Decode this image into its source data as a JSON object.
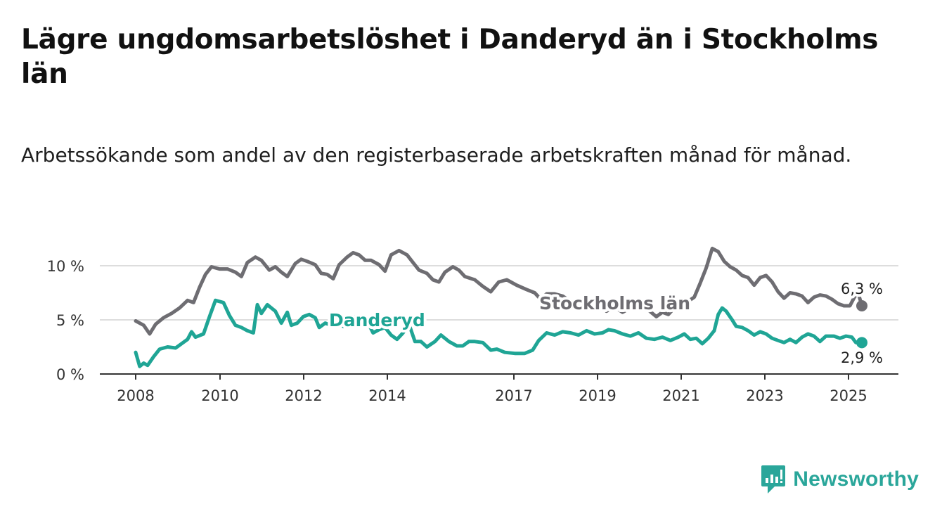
{
  "title": "Lägre ungdomsarbetslöshet i Danderyd än i Stockholms län",
  "subtitle": "Arbetssökande som andel av den registerbaserade arbetskraften månad för månad.",
  "logo_text": "Newsworthy",
  "colors": {
    "stockholm": "#6e6d72",
    "danderyd": "#1fa595",
    "grid": "#dddddd",
    "axis": "#333333"
  },
  "chart_data": {
    "type": "line",
    "title": "Lägre ungdomsarbetslöshet i Danderyd än i Stockholms län",
    "subtitle": "Arbetssökande som andel av den registerbaserade arbetskraften månad för månad.",
    "xlabel": "",
    "ylabel": "",
    "xlim": [
      2008.0,
      2026.2
    ],
    "ylim": [
      0,
      12
    ],
    "x_ticks": [
      "2008",
      "2010",
      "2012",
      "2014",
      "2017",
      "2019",
      "2021",
      "2023",
      "2025"
    ],
    "y_ticks": [
      "0 %",
      "5 %",
      "10 %"
    ],
    "grid": true,
    "series": [
      {
        "name": "Stockholms län",
        "end_label": "6,3 %",
        "points": [
          [
            2008.0,
            4.9
          ],
          [
            2008.2,
            4.5
          ],
          [
            2008.35,
            3.7
          ],
          [
            2008.5,
            4.6
          ],
          [
            2008.7,
            5.2
          ],
          [
            2008.9,
            5.6
          ],
          [
            2009.1,
            6.1
          ],
          [
            2009.3,
            6.8
          ],
          [
            2009.45,
            6.6
          ],
          [
            2009.6,
            8.0
          ],
          [
            2009.75,
            9.2
          ],
          [
            2009.9,
            9.9
          ],
          [
            2010.1,
            9.7
          ],
          [
            2010.3,
            9.7
          ],
          [
            2010.5,
            9.4
          ],
          [
            2010.65,
            9.0
          ],
          [
            2010.8,
            10.3
          ],
          [
            2011.0,
            10.8
          ],
          [
            2011.15,
            10.5
          ],
          [
            2011.35,
            9.6
          ],
          [
            2011.5,
            9.9
          ],
          [
            2011.65,
            9.4
          ],
          [
            2011.8,
            9.0
          ],
          [
            2012.0,
            10.2
          ],
          [
            2012.15,
            10.6
          ],
          [
            2012.3,
            10.4
          ],
          [
            2012.5,
            10.1
          ],
          [
            2012.65,
            9.3
          ],
          [
            2012.8,
            9.2
          ],
          [
            2012.95,
            8.8
          ],
          [
            2013.1,
            10.1
          ],
          [
            2013.3,
            10.8
          ],
          [
            2013.45,
            11.2
          ],
          [
            2013.6,
            11.0
          ],
          [
            2013.75,
            10.5
          ],
          [
            2013.9,
            10.5
          ],
          [
            2014.1,
            10.1
          ],
          [
            2014.25,
            9.5
          ],
          [
            2014.4,
            11.0
          ],
          [
            2014.6,
            11.4
          ],
          [
            2014.8,
            11.0
          ],
          [
            2014.95,
            10.3
          ],
          [
            2015.1,
            9.6
          ],
          [
            2015.3,
            9.3
          ],
          [
            2015.45,
            8.7
          ],
          [
            2015.6,
            8.5
          ],
          [
            2015.75,
            9.4
          ],
          [
            2015.95,
            9.9
          ],
          [
            2016.1,
            9.6
          ],
          [
            2016.25,
            9.0
          ],
          [
            2016.5,
            8.7
          ],
          [
            2016.7,
            8.1
          ],
          [
            2016.9,
            7.6
          ],
          [
            2017.1,
            8.5
          ],
          [
            2017.3,
            8.7
          ],
          [
            2017.55,
            8.2
          ],
          [
            2017.8,
            7.8
          ],
          [
            2018.0,
            7.5
          ],
          [
            2018.15,
            6.9
          ],
          [
            2018.3,
            7.4
          ],
          [
            2018.5,
            7.4
          ],
          [
            2018.7,
            7.2
          ],
          [
            2018.9,
            6.7
          ],
          [
            2019.1,
            6.4
          ],
          [
            2019.35,
            6.1
          ],
          [
            2019.6,
            6.7
          ],
          [
            2019.8,
            5.8
          ],
          [
            2020.0,
            6.2
          ],
          [
            2020.2,
            5.7
          ],
          [
            2020.4,
            6.1
          ],
          [
            2020.55,
            6.4
          ],
          [
            2020.7,
            6.0
          ],
          [
            2020.85,
            5.9
          ],
          [
            2021.05,
            5.3
          ],
          [
            2021.2,
            5.7
          ],
          [
            2021.35,
            5.5
          ],
          [
            2021.5,
            6.1
          ],
          [
            2021.65,
            6.6
          ],
          [
            2021.8,
            6.6
          ],
          [
            2022.0,
            7.1
          ],
          [
            2022.15,
            8.4
          ],
          [
            2022.3,
            9.8
          ],
          [
            2022.45,
            11.6
          ],
          [
            2022.6,
            11.3
          ],
          [
            2022.75,
            10.4
          ],
          [
            2022.9,
            9.9
          ],
          [
            2023.05,
            9.6
          ],
          [
            2023.2,
            9.1
          ],
          [
            2023.35,
            8.9
          ],
          [
            2023.5,
            8.2
          ],
          [
            2023.65,
            8.9
          ],
          [
            2023.8,
            9.1
          ],
          [
            2023.95,
            8.5
          ],
          [
            2024.1,
            7.6
          ],
          [
            2024.25,
            7.0
          ],
          [
            2024.4,
            7.5
          ],
          [
            2024.55,
            7.4
          ],
          [
            2024.7,
            7.2
          ],
          [
            2024.85,
            6.6
          ],
          [
            2025.0,
            7.1
          ],
          [
            2025.15,
            7.3
          ],
          [
            2025.3,
            7.2
          ],
          [
            2025.45,
            6.9
          ],
          [
            2025.6,
            6.5
          ],
          [
            2025.75,
            6.3
          ],
          [
            2025.9,
            6.3
          ],
          [
            2026.0,
            7.0
          ],
          [
            2026.1,
            7.6
          ],
          [
            2026.2,
            6.3
          ]
        ]
      },
      {
        "name": "Danderyd",
        "end_label": "2,9 %",
        "points": [
          [
            2008.0,
            2.0
          ],
          [
            2008.1,
            0.7
          ],
          [
            2008.2,
            1.0
          ],
          [
            2008.3,
            0.8
          ],
          [
            2008.45,
            1.6
          ],
          [
            2008.6,
            2.3
          ],
          [
            2008.8,
            2.5
          ],
          [
            2009.0,
            2.4
          ],
          [
            2009.15,
            2.8
          ],
          [
            2009.3,
            3.2
          ],
          [
            2009.4,
            3.9
          ],
          [
            2009.5,
            3.4
          ],
          [
            2009.7,
            3.7
          ],
          [
            2009.85,
            5.3
          ],
          [
            2010.0,
            6.8
          ],
          [
            2010.2,
            6.6
          ],
          [
            2010.35,
            5.4
          ],
          [
            2010.5,
            4.5
          ],
          [
            2010.65,
            4.3
          ],
          [
            2010.8,
            4.0
          ],
          [
            2010.95,
            3.8
          ],
          [
            2011.05,
            6.4
          ],
          [
            2011.15,
            5.6
          ],
          [
            2011.3,
            6.4
          ],
          [
            2011.5,
            5.8
          ],
          [
            2011.65,
            4.7
          ],
          [
            2011.8,
            5.7
          ],
          [
            2011.9,
            4.5
          ],
          [
            2012.05,
            4.7
          ],
          [
            2012.2,
            5.3
          ],
          [
            2012.35,
            5.5
          ],
          [
            2012.5,
            5.2
          ],
          [
            2012.6,
            4.3
          ],
          [
            2012.75,
            4.7
          ],
          [
            2012.9,
            4.5
          ],
          [
            2013.05,
            4.9
          ],
          [
            2013.2,
            4.4
          ],
          [
            2013.35,
            5.0
          ],
          [
            2013.5,
            5.3
          ],
          [
            2013.65,
            4.4
          ],
          [
            2013.8,
            4.9
          ],
          [
            2013.95,
            3.8
          ],
          [
            2014.1,
            4.1
          ],
          [
            2014.25,
            4.3
          ],
          [
            2014.4,
            3.6
          ],
          [
            2014.55,
            3.2
          ],
          [
            2014.7,
            3.8
          ],
          [
            2014.85,
            4.6
          ],
          [
            2015.0,
            3.0
          ],
          [
            2015.15,
            3.0
          ],
          [
            2015.3,
            2.5
          ],
          [
            2015.5,
            3.0
          ],
          [
            2015.65,
            3.6
          ],
          [
            2015.85,
            3.0
          ],
          [
            2016.05,
            2.6
          ],
          [
            2016.2,
            2.6
          ],
          [
            2016.35,
            3.0
          ],
          [
            2016.5,
            3.0
          ],
          [
            2016.7,
            2.9
          ],
          [
            2016.9,
            2.2
          ],
          [
            2017.05,
            2.3
          ],
          [
            2017.25,
            2.0
          ],
          [
            2017.5,
            1.9
          ],
          [
            2017.75,
            1.9
          ],
          [
            2017.95,
            2.2
          ],
          [
            2018.1,
            3.1
          ],
          [
            2018.3,
            3.8
          ],
          [
            2018.5,
            3.6
          ],
          [
            2018.7,
            3.9
          ],
          [
            2018.9,
            3.8
          ],
          [
            2019.1,
            3.6
          ],
          [
            2019.3,
            4.0
          ],
          [
            2019.5,
            3.7
          ],
          [
            2019.7,
            3.8
          ],
          [
            2019.85,
            4.1
          ],
          [
            2020.0,
            4.0
          ],
          [
            2020.2,
            3.7
          ],
          [
            2020.4,
            3.5
          ],
          [
            2020.6,
            3.8
          ],
          [
            2020.8,
            3.3
          ],
          [
            2021.0,
            3.2
          ],
          [
            2021.2,
            3.4
          ],
          [
            2021.4,
            3.1
          ],
          [
            2021.6,
            3.4
          ],
          [
            2021.75,
            3.7
          ],
          [
            2021.9,
            3.2
          ],
          [
            2022.05,
            3.3
          ],
          [
            2022.2,
            2.8
          ],
          [
            2022.35,
            3.3
          ],
          [
            2022.5,
            4.0
          ],
          [
            2022.6,
            5.5
          ],
          [
            2022.7,
            6.1
          ],
          [
            2022.8,
            5.8
          ],
          [
            2022.95,
            5.0
          ],
          [
            2023.05,
            4.4
          ],
          [
            2023.2,
            4.3
          ],
          [
            2023.35,
            4.0
          ],
          [
            2023.5,
            3.6
          ],
          [
            2023.65,
            3.9
          ],
          [
            2023.8,
            3.7
          ],
          [
            2023.95,
            3.3
          ],
          [
            2024.1,
            3.1
          ],
          [
            2024.25,
            2.9
          ],
          [
            2024.4,
            3.2
          ],
          [
            2024.55,
            2.9
          ],
          [
            2024.7,
            3.4
          ],
          [
            2024.85,
            3.7
          ],
          [
            2025.0,
            3.5
          ],
          [
            2025.15,
            3.0
          ],
          [
            2025.3,
            3.5
          ],
          [
            2025.5,
            3.5
          ],
          [
            2025.65,
            3.3
          ],
          [
            2025.8,
            3.5
          ],
          [
            2025.95,
            3.4
          ],
          [
            2026.05,
            2.9
          ],
          [
            2026.2,
            2.9
          ]
        ]
      }
    ]
  }
}
